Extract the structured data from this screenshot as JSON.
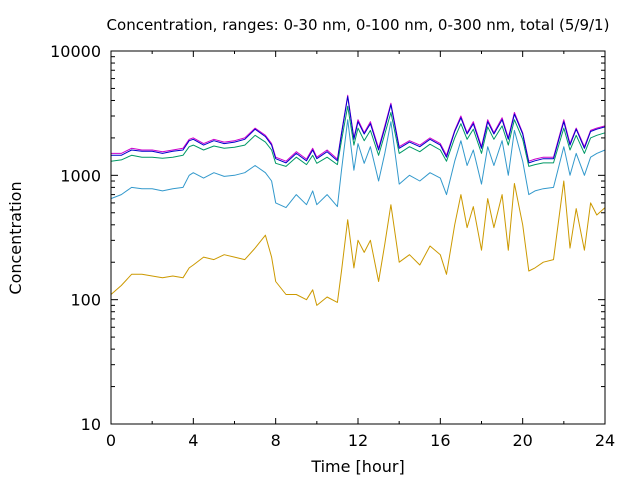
{
  "chart_data": {
    "type": "line",
    "title": "Concentration, ranges: 0-30 nm, 0-100 nm, 0-300 nm, total (5/9/1)",
    "xlabel": "Time [hour]",
    "ylabel": "Concentration",
    "xlim": [
      0,
      24
    ],
    "ylim": [
      10,
      10000
    ],
    "yscale": "log",
    "grid": false,
    "legend": "none",
    "x_ticks": [
      "0",
      "4",
      "8",
      "12",
      "16",
      "20",
      "24"
    ],
    "y_ticks": [
      "10",
      "100",
      "1000",
      "10000"
    ],
    "x": [
      0,
      0.5,
      1,
      1.5,
      2,
      2.5,
      3,
      3.5,
      3.8,
      4,
      4.5,
      5,
      5.5,
      6,
      6.5,
      7,
      7.5,
      7.8,
      8,
      8.5,
      9,
      9.5,
      9.8,
      10,
      10.5,
      11,
      11.2,
      11.5,
      11.8,
      12,
      12.3,
      12.6,
      13,
      13.3,
      13.6,
      14,
      14.5,
      15,
      15.5,
      16,
      16.3,
      16.7,
      17,
      17.3,
      17.6,
      18,
      18.3,
      18.6,
      19,
      19.3,
      19.6,
      20,
      20.3,
      20.6,
      21,
      21.5,
      22,
      22.3,
      22.6,
      23,
      23.3,
      23.6,
      24
    ],
    "series": [
      {
        "color": "#cc00cc",
        "values": [
          1500,
          1500,
          1650,
          1600,
          1600,
          1550,
          1600,
          1650,
          1950,
          2000,
          1800,
          1950,
          1850,
          1900,
          2000,
          2400,
          2100,
          1800,
          1400,
          1300,
          1550,
          1350,
          1650,
          1400,
          1600,
          1350,
          2200,
          4400,
          2000,
          2800,
          2200,
          2700,
          1650,
          2500,
          3800,
          1700,
          1900,
          1750,
          2000,
          1800,
          1450,
          2300,
          3000,
          2200,
          2700,
          1700,
          2800,
          2200,
          2900,
          2000,
          3200,
          2200,
          1300,
          1350,
          1400,
          1400,
          2800,
          1800,
          2400,
          1700,
          2300,
          2400,
          2500
        ]
      },
      {
        "color": "#0000cc",
        "values": [
          1450,
          1450,
          1600,
          1560,
          1560,
          1500,
          1560,
          1600,
          1900,
          1950,
          1750,
          1900,
          1800,
          1850,
          1950,
          2350,
          2050,
          1750,
          1360,
          1260,
          1500,
          1310,
          1600,
          1360,
          1550,
          1310,
          2150,
          4300,
          1950,
          2700,
          2150,
          2600,
          1600,
          2400,
          3700,
          1650,
          1850,
          1700,
          1950,
          1750,
          1400,
          2250,
          2900,
          2150,
          2600,
          1650,
          2700,
          2150,
          2800,
          1950,
          3100,
          2150,
          1260,
          1310,
          1360,
          1360,
          2700,
          1750,
          2350,
          1650,
          2250,
          2350,
          2450
        ]
      },
      {
        "color": "#009966",
        "values": [
          1300,
          1330,
          1450,
          1400,
          1400,
          1370,
          1400,
          1450,
          1700,
          1750,
          1600,
          1720,
          1650,
          1680,
          1750,
          2100,
          1850,
          1600,
          1250,
          1180,
          1400,
          1220,
          1450,
          1250,
          1400,
          1220,
          1900,
          3600,
          1750,
          2400,
          1900,
          2300,
          1450,
          2150,
          3200,
          1500,
          1700,
          1550,
          1780,
          1600,
          1300,
          2000,
          2600,
          1950,
          2350,
          1500,
          2450,
          1950,
          2500,
          1750,
          2800,
          1950,
          1180,
          1220,
          1260,
          1260,
          2400,
          1600,
          2100,
          1500,
          2000,
          2100,
          2200
        ]
      },
      {
        "color": "#3399cc",
        "values": [
          650,
          700,
          800,
          780,
          780,
          750,
          780,
          800,
          1000,
          1050,
          950,
          1050,
          980,
          1000,
          1050,
          1200,
          1050,
          900,
          600,
          550,
          700,
          580,
          750,
          580,
          700,
          560,
          1100,
          2800,
          1100,
          1800,
          1250,
          1700,
          900,
          1500,
          2700,
          850,
          1000,
          900,
          1050,
          950,
          700,
          1300,
          1900,
          1200,
          1600,
          850,
          1700,
          1200,
          1900,
          1000,
          2300,
          1300,
          700,
          750,
          780,
          800,
          1700,
          1000,
          1500,
          1000,
          1400,
          1500,
          1600
        ]
      },
      {
        "color": "#cc9900",
        "values": [
          110,
          130,
          160,
          160,
          155,
          150,
          155,
          150,
          180,
          190,
          220,
          210,
          230,
          220,
          210,
          260,
          330,
          220,
          140,
          110,
          110,
          100,
          120,
          90,
          105,
          95,
          170,
          440,
          180,
          300,
          240,
          300,
          140,
          280,
          580,
          200,
          230,
          190,
          270,
          230,
          160,
          400,
          700,
          380,
          560,
          250,
          650,
          380,
          700,
          250,
          860,
          400,
          170,
          180,
          200,
          210,
          900,
          260,
          540,
          250,
          600,
          480,
          550
        ]
      }
    ]
  }
}
